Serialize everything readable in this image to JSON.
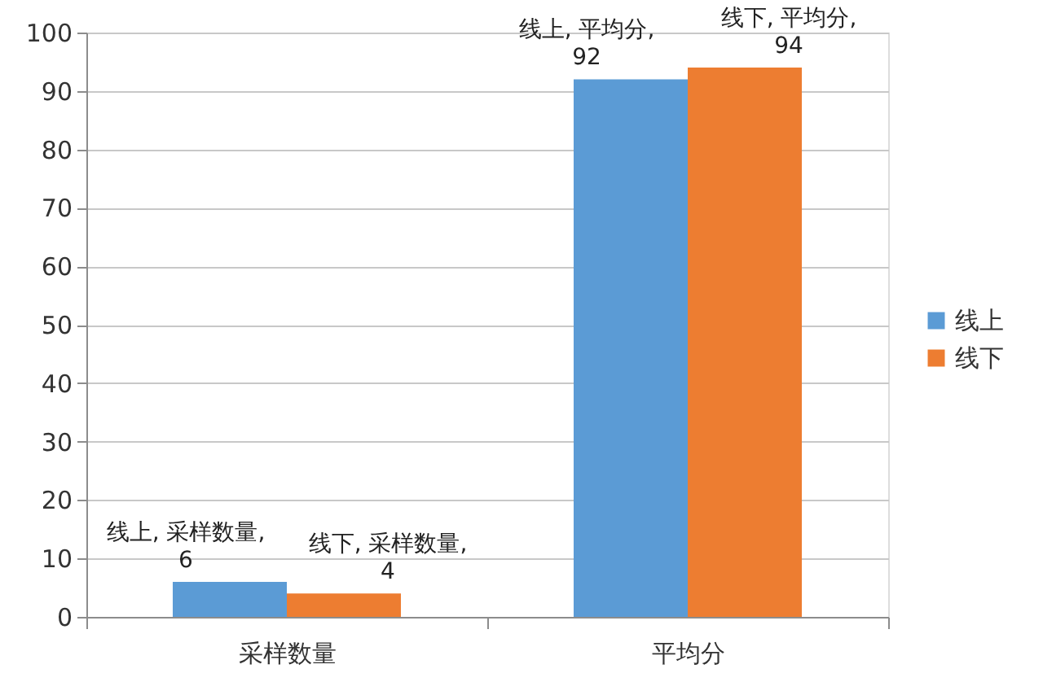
{
  "chart_data": {
    "type": "bar",
    "categories": [
      "采样数量",
      "平均分"
    ],
    "series": [
      {
        "name": "线上",
        "color": "#5b9bd5",
        "values": [
          6,
          92
        ],
        "value_labels": [
          "线上, 采样数量, 6",
          "线上, 平均分, 92"
        ]
      },
      {
        "name": "线下",
        "color": "#ed7d31",
        "values": [
          4,
          94
        ],
        "value_labels": [
          "线下, 采样数量, 4",
          "线下, 平均分, 94"
        ]
      }
    ],
    "ylim": [
      0,
      100
    ],
    "yticks": [
      0,
      10,
      20,
      30,
      40,
      50,
      60,
      70,
      80,
      90,
      100
    ],
    "grid": "y",
    "legend": "right"
  }
}
